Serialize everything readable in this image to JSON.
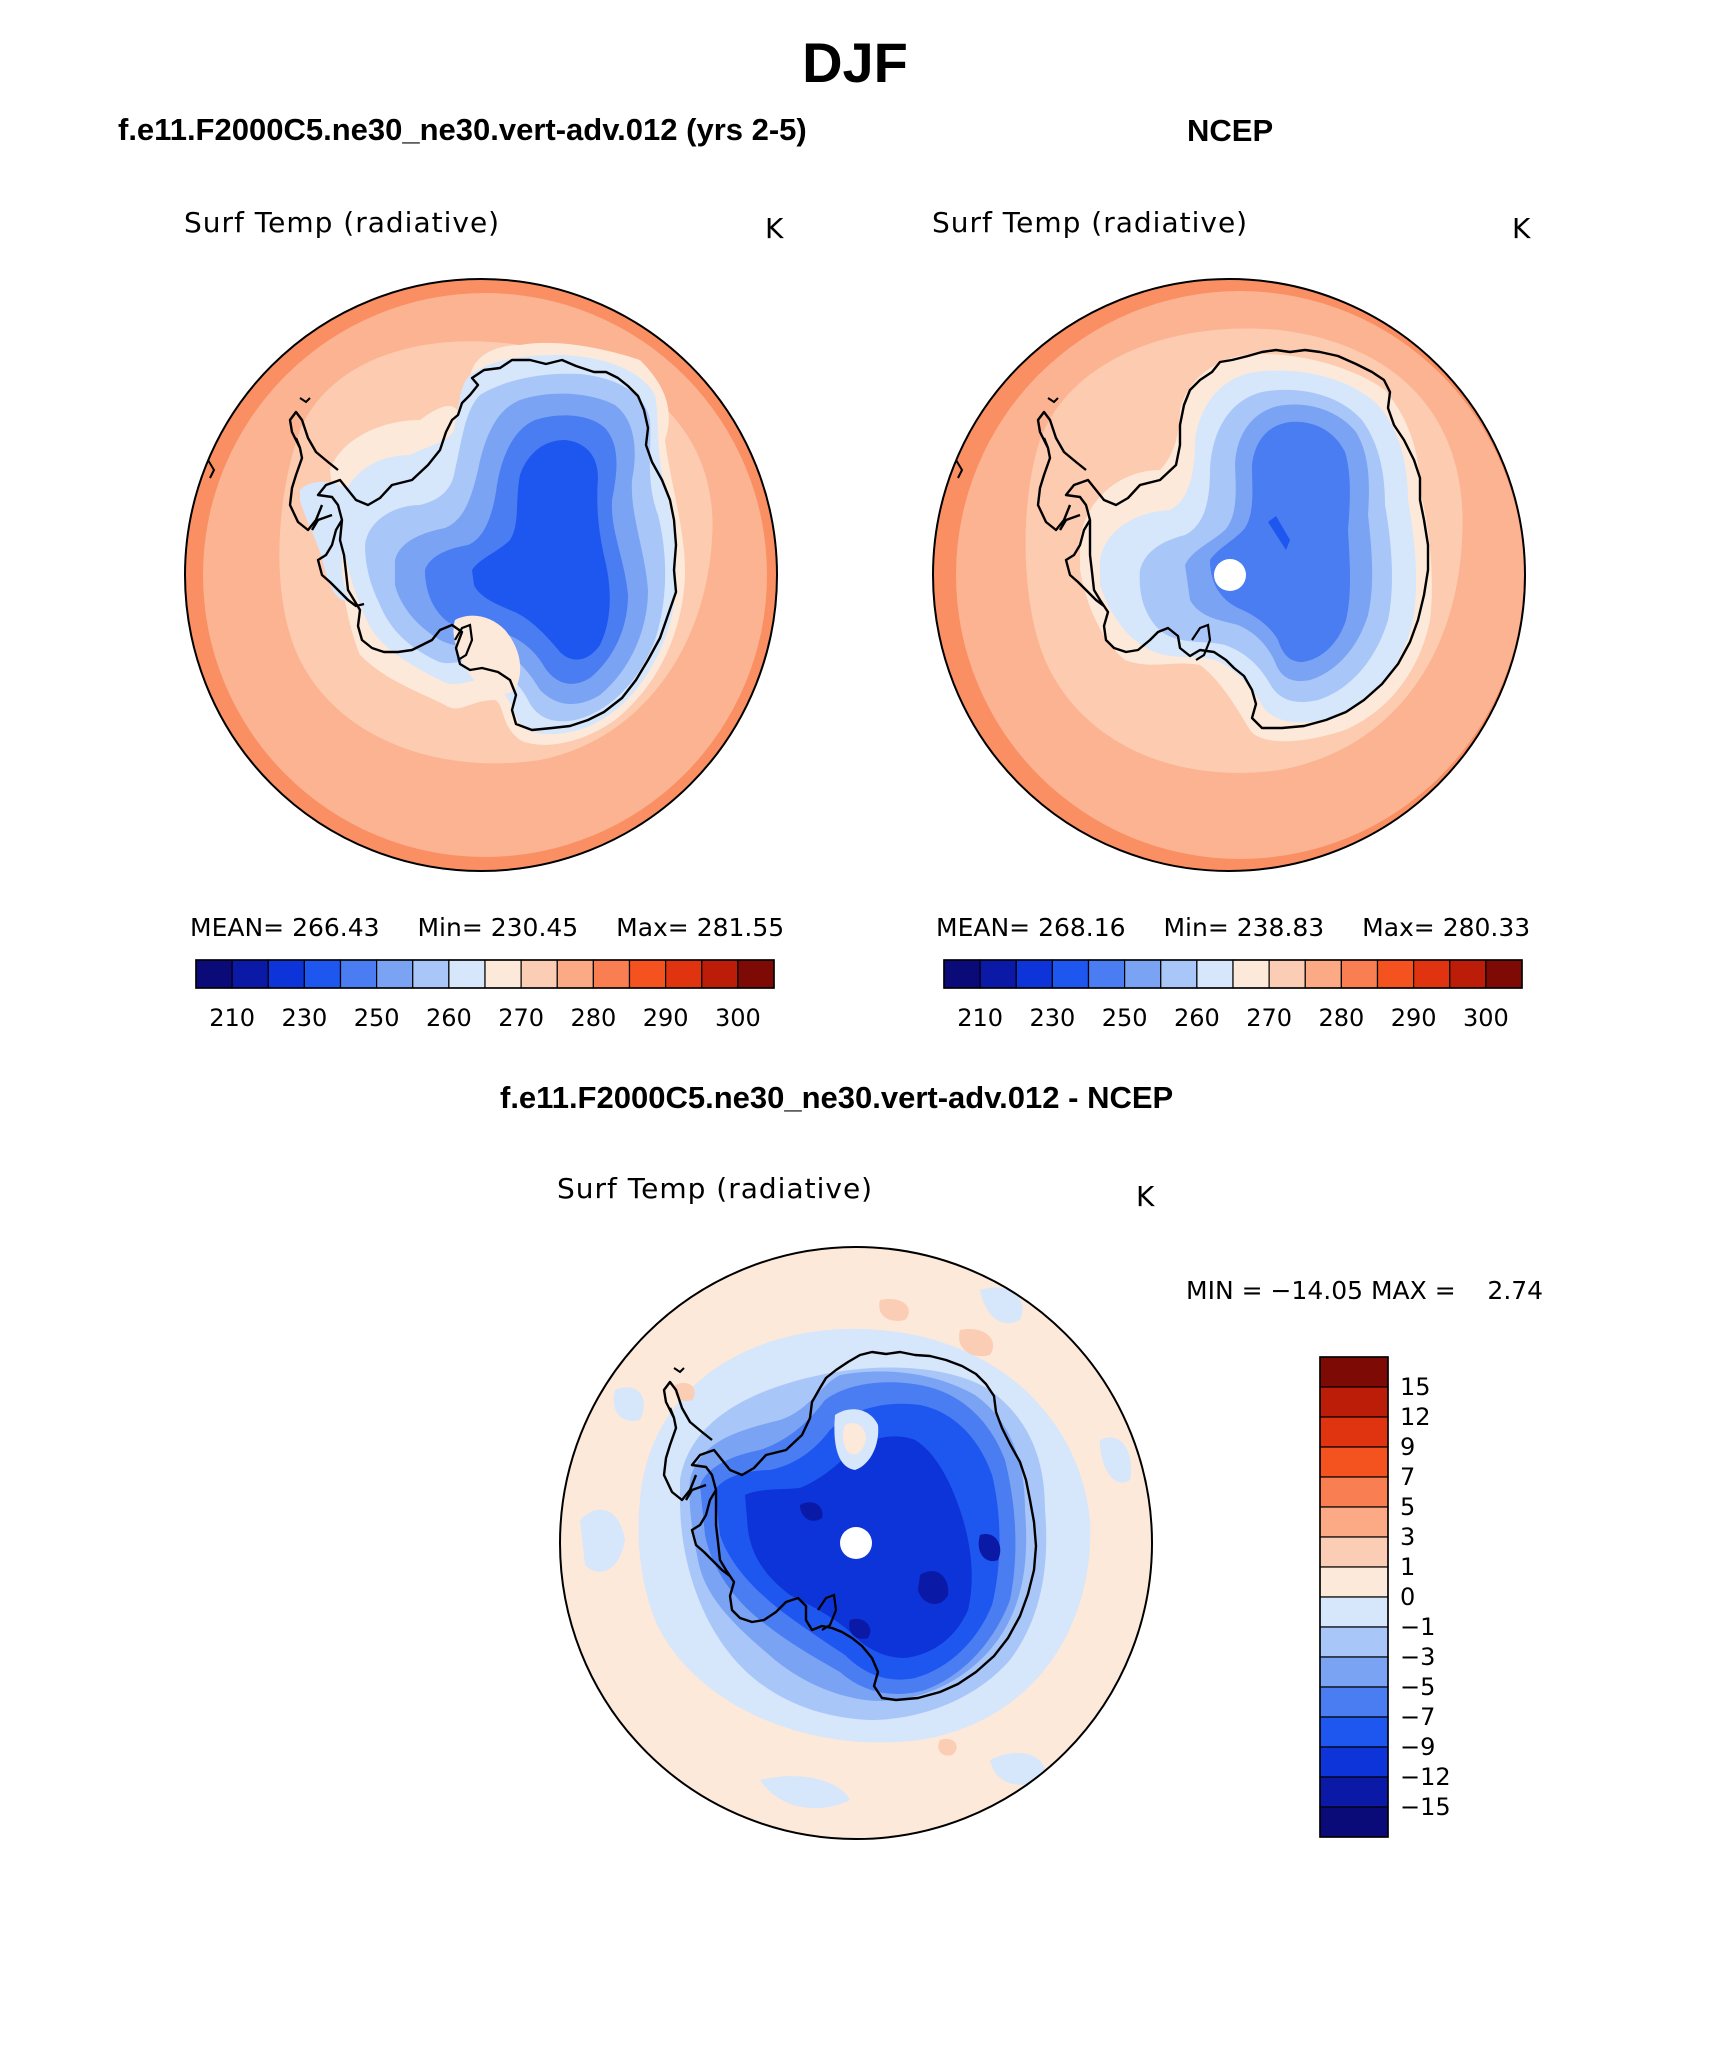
{
  "title": "DJF",
  "panels": [
    {
      "id": "model",
      "title": "f.e11.F2000C5.ne30_ne30.vert-adv.012 (yrs 2-5)",
      "variable": "Surf Temp (radiative)",
      "units": "K",
      "stats": {
        "mean_label": "MEAN=",
        "mean": "266.43",
        "min_label": "Min=",
        "min": "230.45",
        "max_label": "Max=",
        "max": "281.55"
      },
      "pole_masked": false
    },
    {
      "id": "ncep",
      "title": "NCEP",
      "variable": "Surf Temp (radiative)",
      "units": "K",
      "stats": {
        "mean_label": "MEAN=",
        "mean": "268.16",
        "min_label": "Min=",
        "min": "238.83",
        "max_label": "Max=",
        "max": "280.33"
      },
      "pole_masked": true
    },
    {
      "id": "diff",
      "title": "f.e11.F2000C5.ne30_ne30.vert-adv.012 - NCEP",
      "variable": "Surf Temp (radiative)",
      "units": "K",
      "minmax": "MIN = −14.05 MAX =    2.74",
      "pole_masked": true
    }
  ],
  "abs_colorbar": {
    "colors": [
      "#0a0a78",
      "#0b1aa6",
      "#0d34d8",
      "#1e56f0",
      "#4a7cf2",
      "#7aa3f4",
      "#a9c6f8",
      "#d6e6fb",
      "#fde9d9",
      "#fccdb5",
      "#fcaa86",
      "#f97e52",
      "#f4521f",
      "#e03410",
      "#bb1d08",
      "#7e0a06"
    ],
    "labels": [
      "210",
      "230",
      "250",
      "260",
      "270",
      "280",
      "290",
      "300"
    ]
  },
  "diff_colorbar": {
    "colors": [
      "#7e0a06",
      "#bb1d08",
      "#e03410",
      "#f4521f",
      "#f97e52",
      "#fcaa86",
      "#fccdb5",
      "#fde9d9",
      "#d6e6fb",
      "#a9c6f8",
      "#7aa3f4",
      "#4a7cf2",
      "#1e56f0",
      "#0d34d8",
      "#0b1aa6",
      "#0a0a78"
    ],
    "labels": [
      "15",
      "12",
      "9",
      "7",
      "5",
      "3",
      "1",
      "0",
      "−1",
      "−3",
      "−5",
      "−7",
      "−9",
      "−12",
      "−15"
    ]
  },
  "map_colors": {
    "ocean_warm": "#f98f63",
    "ocean": "#fbb391",
    "ocean_light": "#fccbb0",
    "coast_cream": "#fde9d9",
    "ice_light": "#d6e6fb",
    "ice": "#a9c6f8",
    "ice_mid": "#7aa3f4",
    "ice_deep": "#4a7cf2",
    "ice_core": "#1e56f0",
    "ice_core2": "#0d34d8",
    "diff_bg": "#fde9d9",
    "diff_light": "#d6e6fb",
    "diff_warm": "#fccdb5"
  }
}
